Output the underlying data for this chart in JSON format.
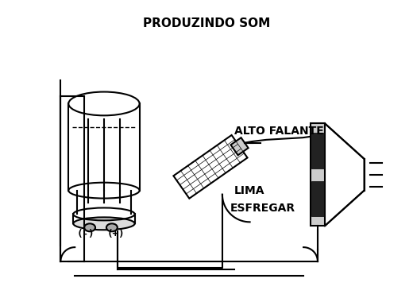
{
  "bg_color": "#ffffff",
  "line_color": "#000000",
  "title": "PRODUZINDO SOM",
  "label_esfregar": "ESFREGAR",
  "label_lima": "LIMA",
  "label_alto_falante": "ALTO FALANTE",
  "label_neg": "(-)",
  "label_pos": "(+)",
  "title_fontsize": 11,
  "label_fontsize": 10
}
